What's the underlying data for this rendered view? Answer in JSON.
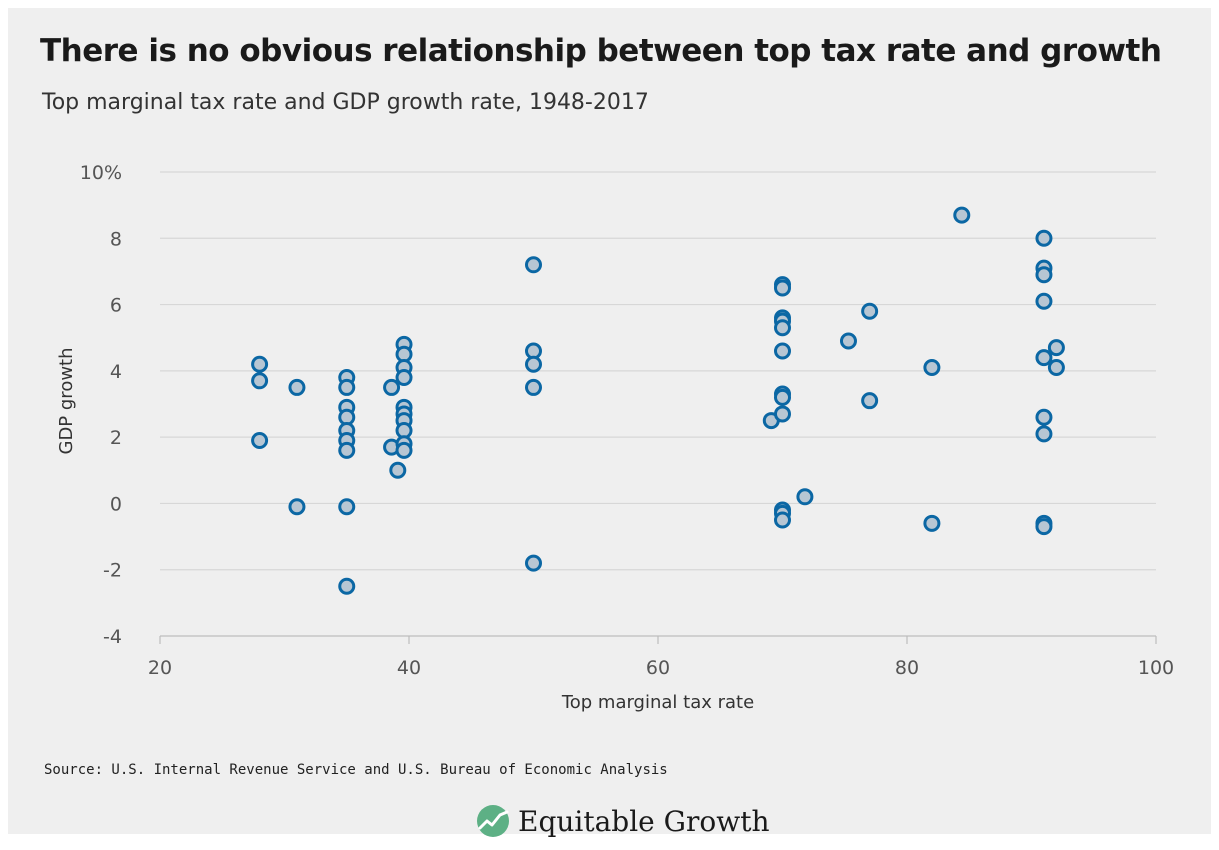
{
  "title": "There is no obvious relationship between top tax rate and growth",
  "subtitle": "Top marginal tax rate and GDP growth rate, 1948-2017",
  "source": "Source: U.S. Internal Revenue Service and U.S. Bureau of Economic Analysis",
  "brand": {
    "name": "Equitable Growth",
    "logo_icon": "growth-line-logo-icon",
    "logo_color": "#5db085"
  },
  "colors": {
    "point_stroke": "#0b67a4",
    "point_fill": "#b7c6d3",
    "grid": "#d7d7d7",
    "background": "#efefef"
  },
  "chart_data": {
    "type": "scatter",
    "title": "There is no obvious relationship between top tax rate and growth",
    "subtitle": "Top marginal tax rate and GDP growth rate, 1948-2017",
    "xlabel": "Top marginal tax rate",
    "ylabel": "GDP growth",
    "xlim": [
      20,
      100
    ],
    "ylim": [
      -4,
      10
    ],
    "x_ticks": [
      20,
      40,
      60,
      80,
      100
    ],
    "x_tick_labels": [
      "20",
      "40",
      "60",
      "80",
      "100"
    ],
    "y_ticks": [
      -4,
      -2,
      0,
      2,
      4,
      6,
      8,
      10
    ],
    "y_tick_labels": [
      "-4",
      "-2",
      "0",
      "2",
      "4",
      "6",
      "8",
      "10%"
    ],
    "grid": "horizontal",
    "points": [
      {
        "x": 28,
        "y": 4.2
      },
      {
        "x": 28,
        "y": 3.7
      },
      {
        "x": 28,
        "y": 1.9
      },
      {
        "x": 31,
        "y": 3.5
      },
      {
        "x": 31,
        "y": -0.1
      },
      {
        "x": 35,
        "y": 3.8
      },
      {
        "x": 35,
        "y": 3.5
      },
      {
        "x": 35,
        "y": 2.9
      },
      {
        "x": 35,
        "y": 2.6
      },
      {
        "x": 35,
        "y": 2.2
      },
      {
        "x": 35,
        "y": 1.9
      },
      {
        "x": 35,
        "y": 1.6
      },
      {
        "x": 35,
        "y": -0.1
      },
      {
        "x": 35,
        "y": -2.5
      },
      {
        "x": 38.6,
        "y": 3.5
      },
      {
        "x": 38.6,
        "y": 1.7
      },
      {
        "x": 39.1,
        "y": 1.0
      },
      {
        "x": 39.6,
        "y": 4.8
      },
      {
        "x": 39.6,
        "y": 4.5
      },
      {
        "x": 39.6,
        "y": 4.1
      },
      {
        "x": 39.6,
        "y": 3.8
      },
      {
        "x": 39.6,
        "y": 2.9
      },
      {
        "x": 39.6,
        "y": 2.7
      },
      {
        "x": 39.6,
        "y": 2.5
      },
      {
        "x": 39.6,
        "y": 2.2
      },
      {
        "x": 39.6,
        "y": 1.8
      },
      {
        "x": 39.6,
        "y": 1.6
      },
      {
        "x": 50,
        "y": 7.2
      },
      {
        "x": 50,
        "y": 4.6
      },
      {
        "x": 50,
        "y": 4.2
      },
      {
        "x": 50,
        "y": 3.5
      },
      {
        "x": 50,
        "y": -1.8
      },
      {
        "x": 69.1,
        "y": 2.5
      },
      {
        "x": 70,
        "y": 6.6
      },
      {
        "x": 70,
        "y": 6.5
      },
      {
        "x": 70,
        "y": 5.6
      },
      {
        "x": 70,
        "y": 5.5
      },
      {
        "x": 70,
        "y": 5.3
      },
      {
        "x": 70,
        "y": 4.6
      },
      {
        "x": 70,
        "y": 3.3
      },
      {
        "x": 70,
        "y": 3.2
      },
      {
        "x": 70,
        "y": 2.7
      },
      {
        "x": 70,
        "y": -0.2
      },
      {
        "x": 70,
        "y": -0.3
      },
      {
        "x": 70,
        "y": -0.5
      },
      {
        "x": 71.8,
        "y": 0.2
      },
      {
        "x": 75.3,
        "y": 4.9
      },
      {
        "x": 77,
        "y": 5.8
      },
      {
        "x": 77,
        "y": 3.1
      },
      {
        "x": 82,
        "y": 4.1
      },
      {
        "x": 82,
        "y": -0.6
      },
      {
        "x": 84.4,
        "y": 8.7
      },
      {
        "x": 91,
        "y": 8.0
      },
      {
        "x": 91,
        "y": 7.1
      },
      {
        "x": 91,
        "y": 6.9
      },
      {
        "x": 91,
        "y": 6.1
      },
      {
        "x": 91,
        "y": 4.4
      },
      {
        "x": 91,
        "y": 2.6
      },
      {
        "x": 91,
        "y": 2.1
      },
      {
        "x": 91,
        "y": -0.6
      },
      {
        "x": 91,
        "y": -0.7
      },
      {
        "x": 92,
        "y": 4.7
      },
      {
        "x": 92,
        "y": 4.1
      }
    ]
  }
}
